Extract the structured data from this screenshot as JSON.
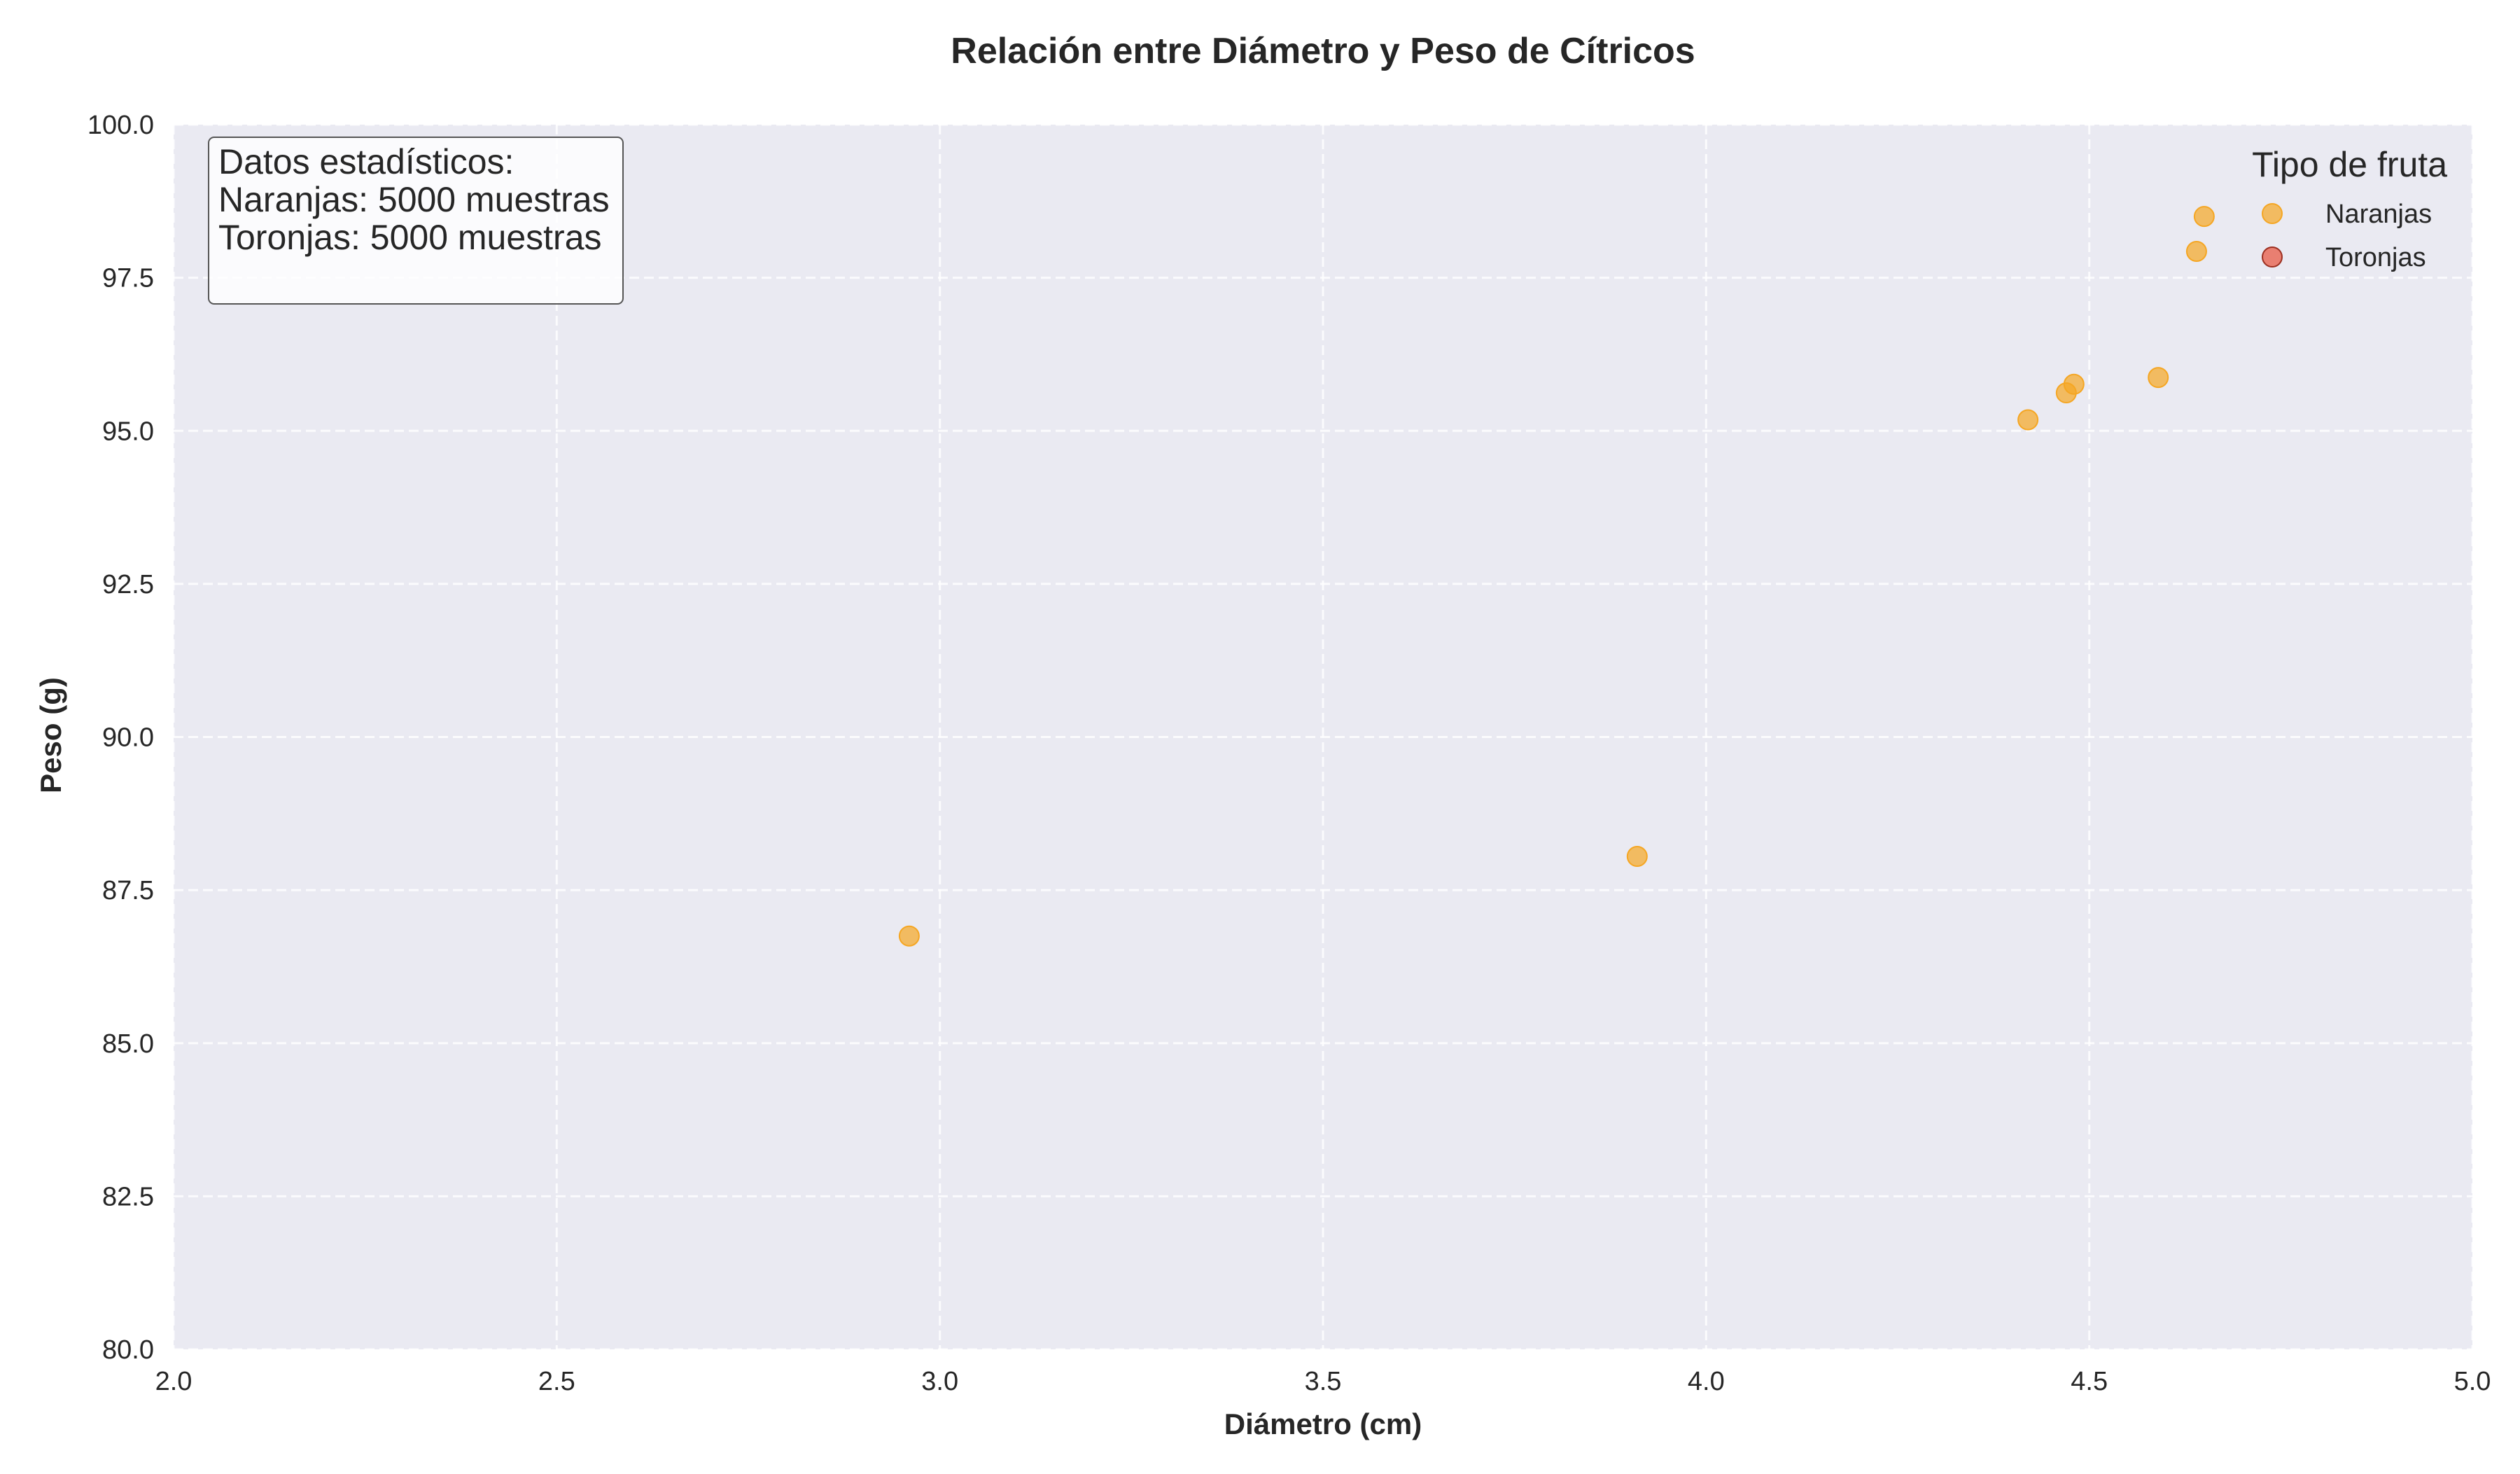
{
  "chart_data": {
    "type": "scatter",
    "title": "Relación entre Diámetro y Peso de Cítricos",
    "xlabel": "Diámetro (cm)",
    "ylabel": "Peso (g)",
    "xlim": [
      2.0,
      5.0
    ],
    "ylim": [
      80.0,
      100.0
    ],
    "x_ticks": [
      "2.0",
      "2.5",
      "3.0",
      "3.5",
      "4.0",
      "4.5",
      "5.0"
    ],
    "y_ticks": [
      "80.0",
      "82.5",
      "85.0",
      "87.5",
      "90.0",
      "92.5",
      "95.0",
      "97.5",
      "100.0"
    ],
    "grid": true,
    "legend_placement": "top-right",
    "legend_title": "Tipo de fruta",
    "series": [
      {
        "name": "Naranjas",
        "color": "#f5a623",
        "points": [
          {
            "x": 2.96,
            "y": 86.75
          },
          {
            "x": 3.91,
            "y": 88.05
          },
          {
            "x": 4.42,
            "y": 95.18
          },
          {
            "x": 4.47,
            "y": 95.62
          },
          {
            "x": 4.48,
            "y": 95.76
          },
          {
            "x": 4.59,
            "y": 95.87
          },
          {
            "x": 4.64,
            "y": 97.93
          },
          {
            "x": 4.65,
            "y": 98.5
          }
        ]
      },
      {
        "name": "Toronjas",
        "color": "#e8513b",
        "points": []
      }
    ],
    "annotation": {
      "lines": [
        "Datos estadísticos:",
        "Naranjas: 5000 muestras",
        "Toronjas: 5000 muestras"
      ]
    }
  }
}
